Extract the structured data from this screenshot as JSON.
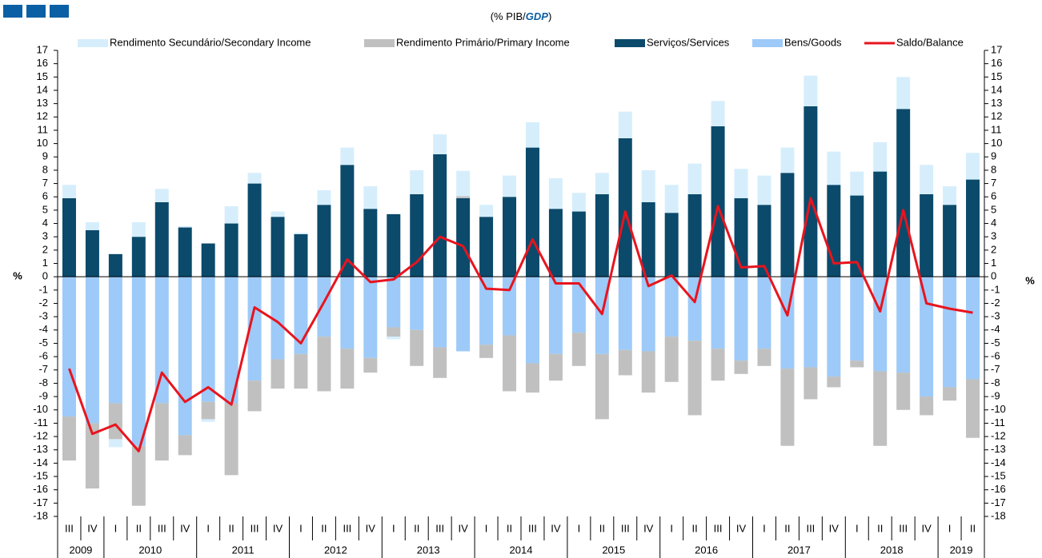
{
  "chart_data": {
    "type": "bar",
    "subtitle_parts": [
      "(% PIB/",
      "GDP",
      ")"
    ],
    "ylabel": "%",
    "categories": [
      "III",
      "IV",
      "I",
      "II",
      "III",
      "IV",
      "I",
      "II",
      "III",
      "IV",
      "I",
      "II",
      "III",
      "IV",
      "I",
      "II",
      "III",
      "IV",
      "I",
      "II",
      "III",
      "IV",
      "I",
      "II",
      "III",
      "IV",
      "I",
      "II",
      "III",
      "IV",
      "I",
      "II",
      "III",
      "IV",
      "I",
      "II",
      "III",
      "IV",
      "I",
      "II"
    ],
    "years": [
      "2009",
      "2010",
      "2011",
      "2012",
      "2013",
      "2014",
      "2015",
      "2016",
      "2017",
      "2018",
      "2019"
    ],
    "ylim": [
      -18,
      17
    ],
    "yticks": [
      -18,
      -17,
      -16,
      -15,
      -14,
      -13,
      -12,
      -11,
      -10,
      -9,
      -8,
      -7,
      -6,
      -5,
      -4,
      -3,
      -2,
      -1,
      0,
      1,
      2,
      3,
      4,
      5,
      6,
      7,
      8,
      9,
      10,
      11,
      12,
      13,
      14,
      15,
      16,
      17
    ],
    "series": [
      {
        "name": "Rendimento Secundário/Secondary Income",
        "type": "bar",
        "color": "#d6eefc",
        "values": [
          1.0,
          0.6,
          -0.6,
          1.1,
          1.0,
          0.1,
          -0.2,
          1.3,
          0.8,
          0.4,
          0.1,
          1.1,
          1.3,
          1.7,
          -0.2,
          1.8,
          1.5,
          1.9,
          0.9,
          1.6,
          1.9,
          2.3,
          1.4,
          1.6,
          2.0,
          2.4,
          2.1,
          2.3,
          1.9,
          2.2,
          2.2,
          1.9,
          2.3,
          2.5,
          1.8,
          2.2,
          2.4,
          2.2,
          1.4,
          2.0
        ]
      },
      {
        "name": "Rendimento Primário/Primary Income",
        "type": "bar",
        "color": "#c0c0c0",
        "values": [
          -3.3,
          -4.9,
          -2.7,
          -4.5,
          -4.3,
          -1.5,
          -1.3,
          -5.4,
          -2.3,
          -2.2,
          -2.6,
          -4.1,
          -3.0,
          -1.1,
          -0.7,
          -2.7,
          -2.3,
          0.15,
          -1.0,
          -4.2,
          -2.2,
          -2.0,
          -2.5,
          -4.9,
          -1.9,
          -3.1,
          -3.4,
          -5.6,
          -2.4,
          -1.0,
          -1.3,
          -5.8,
          -2.4,
          -0.8,
          -0.5,
          -5.6,
          -2.8,
          -1.4,
          -1.0,
          -4.4
        ]
      },
      {
        "name": "Serviços/Services",
        "type": "bar",
        "color": "#0b4a6b",
        "values": [
          5.9,
          3.5,
          1.7,
          3.0,
          5.6,
          3.7,
          2.5,
          4.0,
          7.0,
          4.5,
          3.2,
          5.4,
          8.4,
          5.1,
          4.7,
          6.2,
          9.2,
          5.9,
          4.5,
          6.0,
          9.7,
          5.1,
          4.9,
          6.2,
          10.4,
          5.6,
          4.8,
          6.2,
          11.3,
          5.9,
          5.4,
          7.8,
          12.8,
          6.9,
          6.1,
          7.9,
          12.6,
          6.2,
          5.4,
          7.3
        ]
      },
      {
        "name": "Bens/Goods",
        "type": "bar",
        "color": "#9dcaf8",
        "values": [
          -10.5,
          -11.0,
          -9.5,
          -12.7,
          -9.5,
          -11.9,
          -9.4,
          -9.5,
          -7.8,
          -6.2,
          -5.8,
          -4.5,
          -5.4,
          -6.1,
          -3.8,
          -4.0,
          -5.3,
          -5.6,
          -5.1,
          -4.4,
          -6.5,
          -5.8,
          -4.2,
          -5.8,
          -5.5,
          -5.6,
          -4.5,
          -4.8,
          -5.4,
          -6.3,
          -5.4,
          -6.9,
          -6.8,
          -7.5,
          -6.3,
          -7.1,
          -7.2,
          -9.0,
          -8.3,
          -7.7
        ]
      },
      {
        "name": "Saldo/Balance",
        "type": "line",
        "color": "#e8141e",
        "values": [
          -6.9,
          -11.8,
          -11.1,
          -13.1,
          -7.2,
          -9.4,
          -8.3,
          -9.6,
          -2.3,
          -3.4,
          -5.0,
          -1.9,
          1.3,
          -0.4,
          -0.2,
          1.1,
          3.0,
          2.3,
          -0.9,
          -1.0,
          2.8,
          -0.5,
          -0.5,
          -2.8,
          4.9,
          -0.7,
          0.1,
          -1.9,
          5.3,
          0.7,
          0.8,
          -2.9,
          5.9,
          1.0,
          1.1,
          -2.6,
          5.0,
          -2.0,
          -2.4,
          -2.7
        ]
      }
    ]
  }
}
